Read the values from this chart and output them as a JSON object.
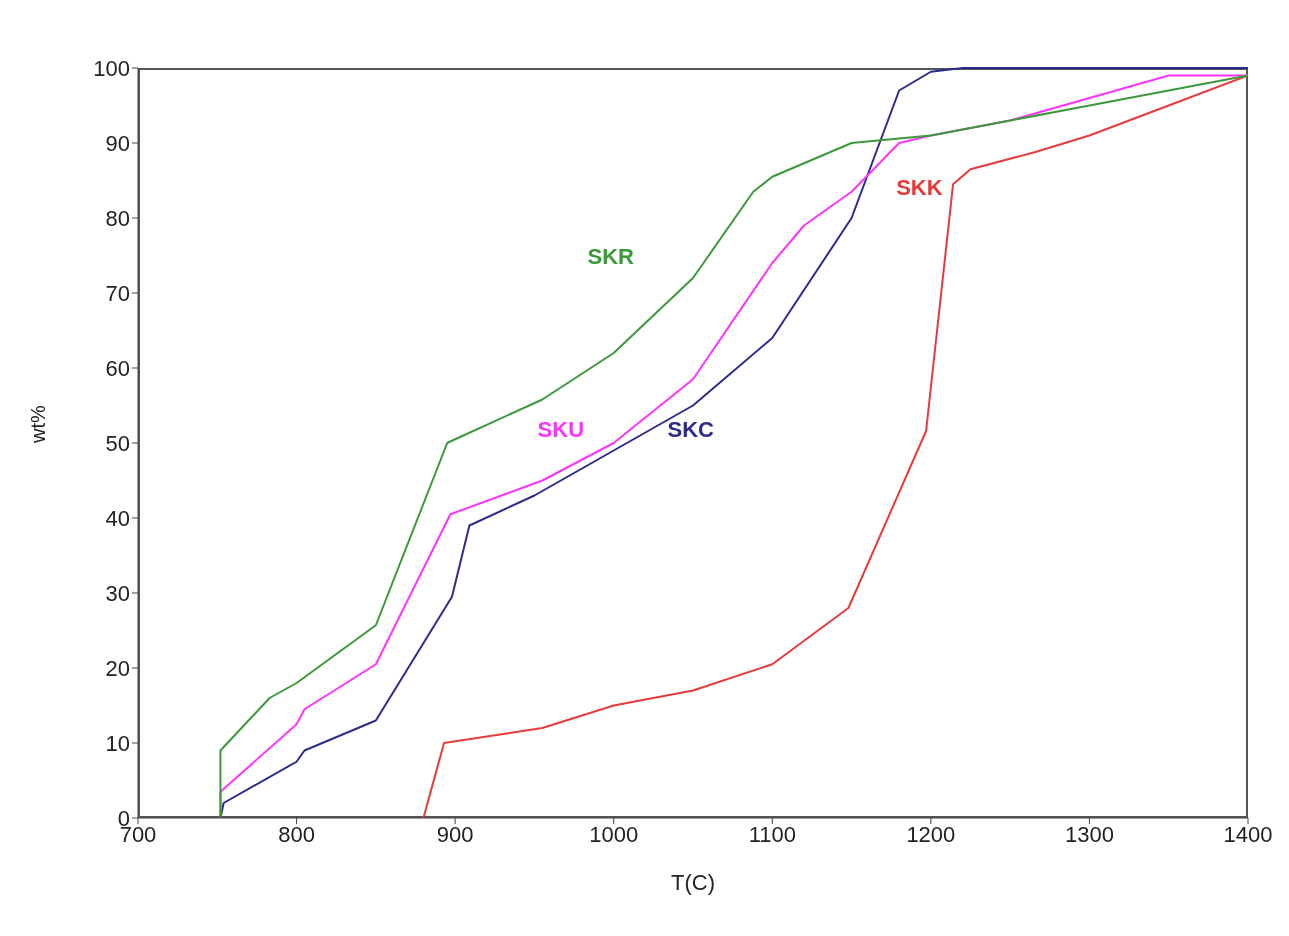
{
  "chart_data": {
    "type": "line",
    "xlabel": "T(C)",
    "ylabel": "wt%",
    "xlim": [
      700,
      1400
    ],
    "xticks": [
      700,
      800,
      900,
      1000,
      1100,
      1200,
      1300,
      1400
    ],
    "ylim": [
      0,
      100
    ],
    "yticks": [
      0,
      10,
      20,
      30,
      40,
      50,
      60,
      70,
      80,
      90,
      100
    ],
    "grid": false,
    "legend": false,
    "marker": "none",
    "line_style": "solid",
    "series": [
      {
        "name": "SKR",
        "color": "#3a9a3a",
        "x": [
          752,
          752,
          783,
          800,
          850,
          895,
          900,
          955,
          1000,
          1050,
          1088,
          1100,
          1150,
          1200,
          1250,
          1300,
          1400
        ],
        "values": [
          0,
          9,
          16,
          18,
          25.7,
          50,
          50.5,
          55.8,
          62,
          72,
          83.5,
          85.5,
          90,
          91,
          93,
          95,
          99
        ]
      },
      {
        "name": "SKU",
        "color": "#ff33ff",
        "x": [
          752,
          752,
          800,
          805,
          850,
          897,
          955,
          1000,
          1050,
          1100,
          1120,
          1150,
          1180,
          1200,
          1250,
          1300,
          1350,
          1400
        ],
        "values": [
          0,
          3.5,
          12.5,
          14.5,
          20.5,
          40.5,
          45,
          50,
          58.5,
          74,
          79,
          83.5,
          90,
          91,
          93,
          96,
          99,
          99
        ]
      },
      {
        "name": "SKC",
        "color": "#2b2b8f",
        "x": [
          752,
          754,
          800,
          805,
          850,
          898,
          909,
          950,
          1050,
          1100,
          1150,
          1180,
          1200,
          1220,
          1400
        ],
        "values": [
          0,
          2,
          7.5,
          9,
          13,
          29.5,
          39,
          43,
          55,
          64,
          80,
          97,
          99.5,
          100,
          100
        ]
      },
      {
        "name": "SKK",
        "color": "#e83a3a",
        "x": [
          880,
          893,
          955,
          1000,
          1050,
          1100,
          1148,
          1197,
          1214,
          1225,
          1266,
          1300,
          1350,
          1400
        ],
        "values": [
          0,
          10,
          12,
          15,
          17,
          20.5,
          28,
          51.6,
          84.5,
          86.5,
          88.8,
          91,
          95,
          99
        ]
      }
    ]
  }
}
